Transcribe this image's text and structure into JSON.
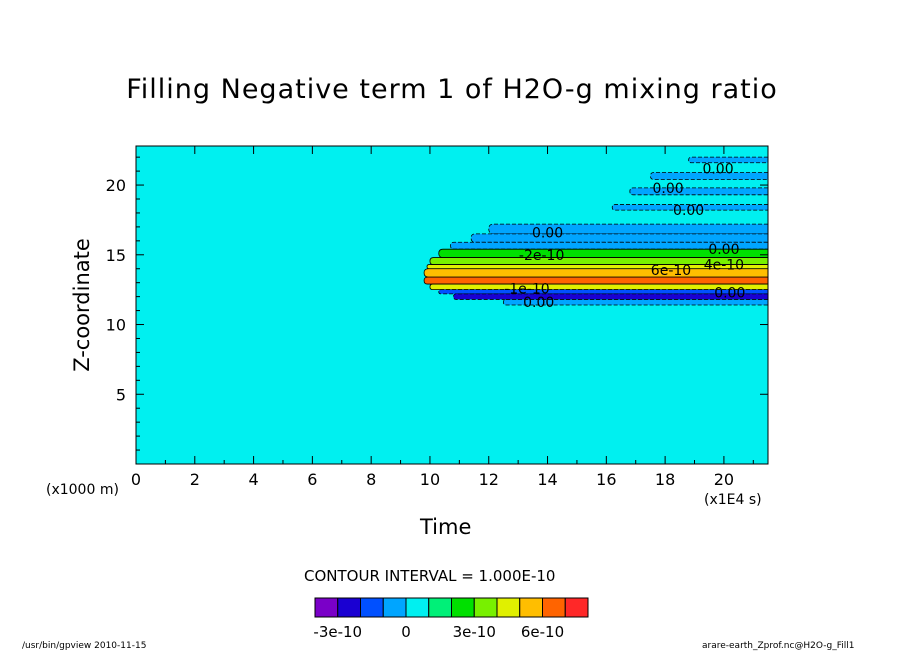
{
  "title": "Filling Negative term 1 of H2O-g mixing ratio",
  "footer": {
    "left": "/usr/bin/gpview  2010-11-15",
    "right": "arare-earth_Zprof.nc@H2O-g_Fill1"
  },
  "chart_data": {
    "type": "heatmap",
    "title": "Filling Negative term 1 of H2O-g mixing ratio",
    "xlabel": "Time",
    "xunit": "(x1E4 s)",
    "ylabel": "Z-coordinate",
    "yunit": "(x1000 m)",
    "xlim": [
      0,
      21.5
    ],
    "ylim": [
      0,
      22.8
    ],
    "xticks": [
      0,
      2,
      4,
      6,
      8,
      10,
      12,
      14,
      16,
      18,
      20
    ],
    "yticks": [
      5,
      10,
      15,
      20
    ],
    "background_value": 0,
    "contour_interval_text": "CONTOUR INTERVAL = 1.000E-10",
    "colorbar": {
      "levels": [
        -4e-10,
        -3e-10,
        -2e-10,
        -1e-10,
        0,
        1e-10,
        2e-10,
        3e-10,
        4e-10,
        5e-10,
        6e-10,
        7e-10
      ],
      "colors": [
        "#7a00c8",
        "#1a00d2",
        "#0050ff",
        "#00a5ff",
        "#00f0f0",
        "#00f078",
        "#00e000",
        "#78f000",
        "#e0f000",
        "#ffbe00",
        "#ff6400",
        "#ff2828"
      ],
      "tick_labels": [
        "-3e-10",
        "0",
        "3e-10",
        "6e-10"
      ]
    },
    "bands": [
      {
        "z_bottom": 21.6,
        "z_top": 22.0,
        "t_start": 18.8,
        "value": -5e-11
      },
      {
        "z_bottom": 20.4,
        "z_top": 20.9,
        "t_start": 17.5,
        "value": -5e-11
      },
      {
        "z_bottom": 19.3,
        "z_top": 19.8,
        "t_start": 16.8,
        "value": -5e-11
      },
      {
        "z_bottom": 18.2,
        "z_top": 18.6,
        "t_start": 16.2,
        "value": -5e-11
      },
      {
        "z_bottom": 16.5,
        "z_top": 17.2,
        "t_start": 12.0,
        "value": -5e-11
      },
      {
        "z_bottom": 15.9,
        "z_top": 16.5,
        "t_start": 11.4,
        "value": -5e-11
      },
      {
        "z_bottom": 15.4,
        "z_top": 15.9,
        "t_start": 10.7,
        "value": -1e-10
      },
      {
        "z_bottom": 14.8,
        "z_top": 15.4,
        "t_start": 10.3,
        "value": 2e-10
      },
      {
        "z_bottom": 14.3,
        "z_top": 14.8,
        "t_start": 10.0,
        "value": 3e-10
      },
      {
        "z_bottom": 14.0,
        "z_top": 14.3,
        "t_start": 9.9,
        "value": 4e-10
      },
      {
        "z_bottom": 13.4,
        "z_top": 14.0,
        "t_start": 9.8,
        "value": 5e-10
      },
      {
        "z_bottom": 12.9,
        "z_top": 13.4,
        "t_start": 9.8,
        "value": 6e-10
      },
      {
        "z_bottom": 12.5,
        "z_top": 12.9,
        "t_start": 10.0,
        "value": 4e-10
      },
      {
        "z_bottom": 12.2,
        "z_top": 12.5,
        "t_start": 10.3,
        "value": -2e-10
      },
      {
        "z_bottom": 11.8,
        "z_top": 12.2,
        "t_start": 10.8,
        "value": -3e-10
      },
      {
        "z_bottom": 11.4,
        "z_top": 11.8,
        "t_start": 12.5,
        "value": -1e-10
      }
    ],
    "contour_labels": [
      {
        "x": 19.8,
        "y": 21.2,
        "text": "0.00"
      },
      {
        "x": 18.1,
        "y": 19.8,
        "text": "0.00"
      },
      {
        "x": 18.8,
        "y": 18.2,
        "text": "0.00"
      },
      {
        "x": 14.0,
        "y": 16.6,
        "text": "0.00"
      },
      {
        "x": 20.0,
        "y": 15.4,
        "text": "0.00"
      },
      {
        "x": 13.8,
        "y": 15.0,
        "text": "-2e-10"
      },
      {
        "x": 18.2,
        "y": 13.9,
        "text": "6e-10"
      },
      {
        "x": 20.0,
        "y": 14.3,
        "text": "4e-10"
      },
      {
        "x": 13.3,
        "y": 12.6,
        "text": "-1e-10"
      },
      {
        "x": 20.2,
        "y": 12.3,
        "text": "0.00"
      },
      {
        "x": 13.7,
        "y": 11.6,
        "text": "0.00"
      }
    ]
  }
}
